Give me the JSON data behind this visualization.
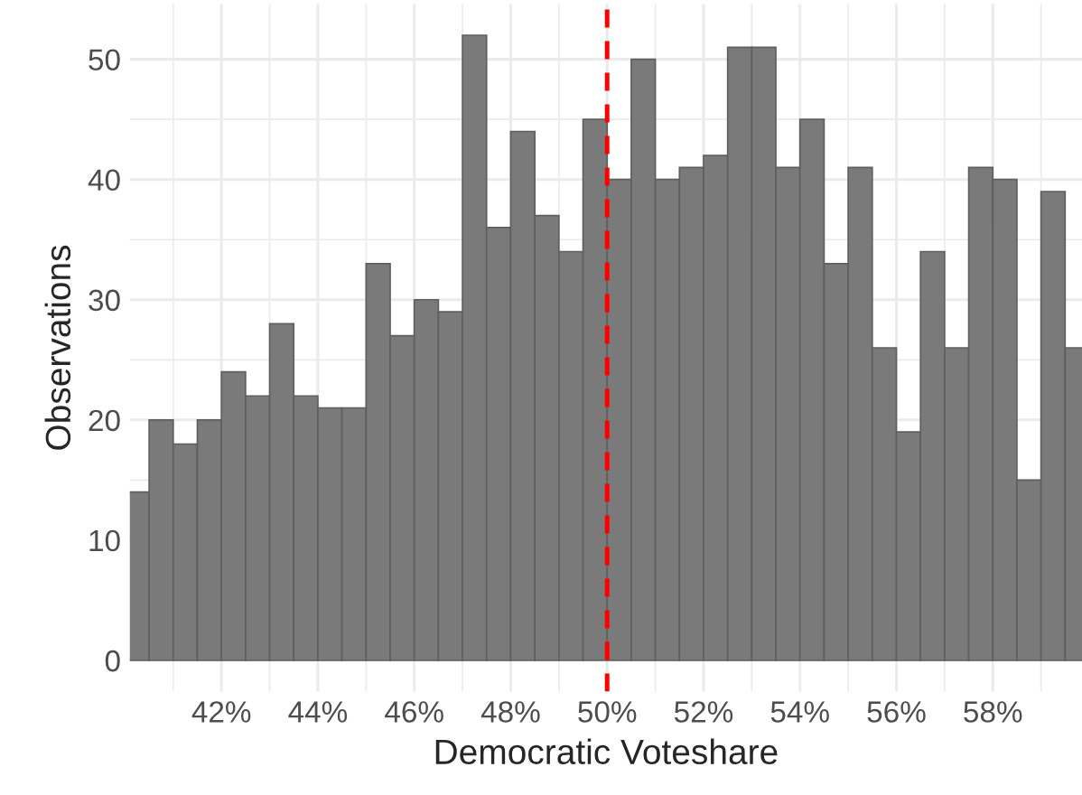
{
  "chart_data": {
    "type": "histogram",
    "xlabel": "Democratic Voteshare",
    "ylabel": "Observations",
    "bins": [
      40,
      40.5,
      41,
      41.5,
      42,
      42.5,
      43,
      43.5,
      44,
      44.5,
      45,
      45.5,
      46,
      46.5,
      47,
      47.5,
      48,
      48.5,
      49,
      49.5,
      50,
      50.5,
      51,
      51.5,
      52,
      52.5,
      53,
      53.5,
      54,
      54.5,
      55,
      55.5,
      56,
      56.5,
      57,
      57.5,
      58,
      58.5,
      59,
      59.5,
      60
    ],
    "values": [
      14,
      20,
      18,
      20,
      24,
      22,
      28,
      22,
      21,
      21,
      33,
      27,
      30,
      29,
      52,
      36,
      44,
      37,
      34,
      45,
      40,
      50,
      40,
      41,
      42,
      51,
      51,
      41,
      45,
      33,
      41,
      26,
      19,
      34,
      26,
      41,
      40,
      15,
      39,
      26
    ],
    "color": "#7a7a7a",
    "xlim": [
      40.1,
      59.85
    ],
    "xticks": [
      {
        "value": 41,
        "label": null
      },
      {
        "value": 42,
        "label": "42%"
      },
      {
        "value": 43,
        "label": null
      },
      {
        "value": 44,
        "label": "44%"
      },
      {
        "value": 45,
        "label": null
      },
      {
        "value": 46,
        "label": "46%"
      },
      {
        "value": 47,
        "label": null
      },
      {
        "value": 48,
        "label": "48%"
      },
      {
        "value": 49,
        "label": null
      },
      {
        "value": 50,
        "label": "50%"
      },
      {
        "value": 51,
        "label": null
      },
      {
        "value": 52,
        "label": "52%"
      },
      {
        "value": 53,
        "label": null
      },
      {
        "value": 54,
        "label": "54%"
      },
      {
        "value": 55,
        "label": null
      },
      {
        "value": 56,
        "label": "56%"
      },
      {
        "value": 57,
        "label": null
      },
      {
        "value": 58,
        "label": "58%"
      },
      {
        "value": 59,
        "label": null
      }
    ],
    "ylim": [
      -2.6,
      54.6
    ],
    "yticks": [
      0,
      10,
      {
        "value": 15,
        "label": null
      },
      20,
      {
        "value": 25,
        "label": null
      },
      30,
      {
        "value": 35,
        "label": null
      },
      40,
      {
        "value": 45,
        "label": null
      },
      50
    ],
    "grid": true,
    "ref_lines": [
      {
        "axis": "x",
        "value": 50,
        "color": "#ff0000",
        "line_style": "dashed"
      }
    ]
  }
}
